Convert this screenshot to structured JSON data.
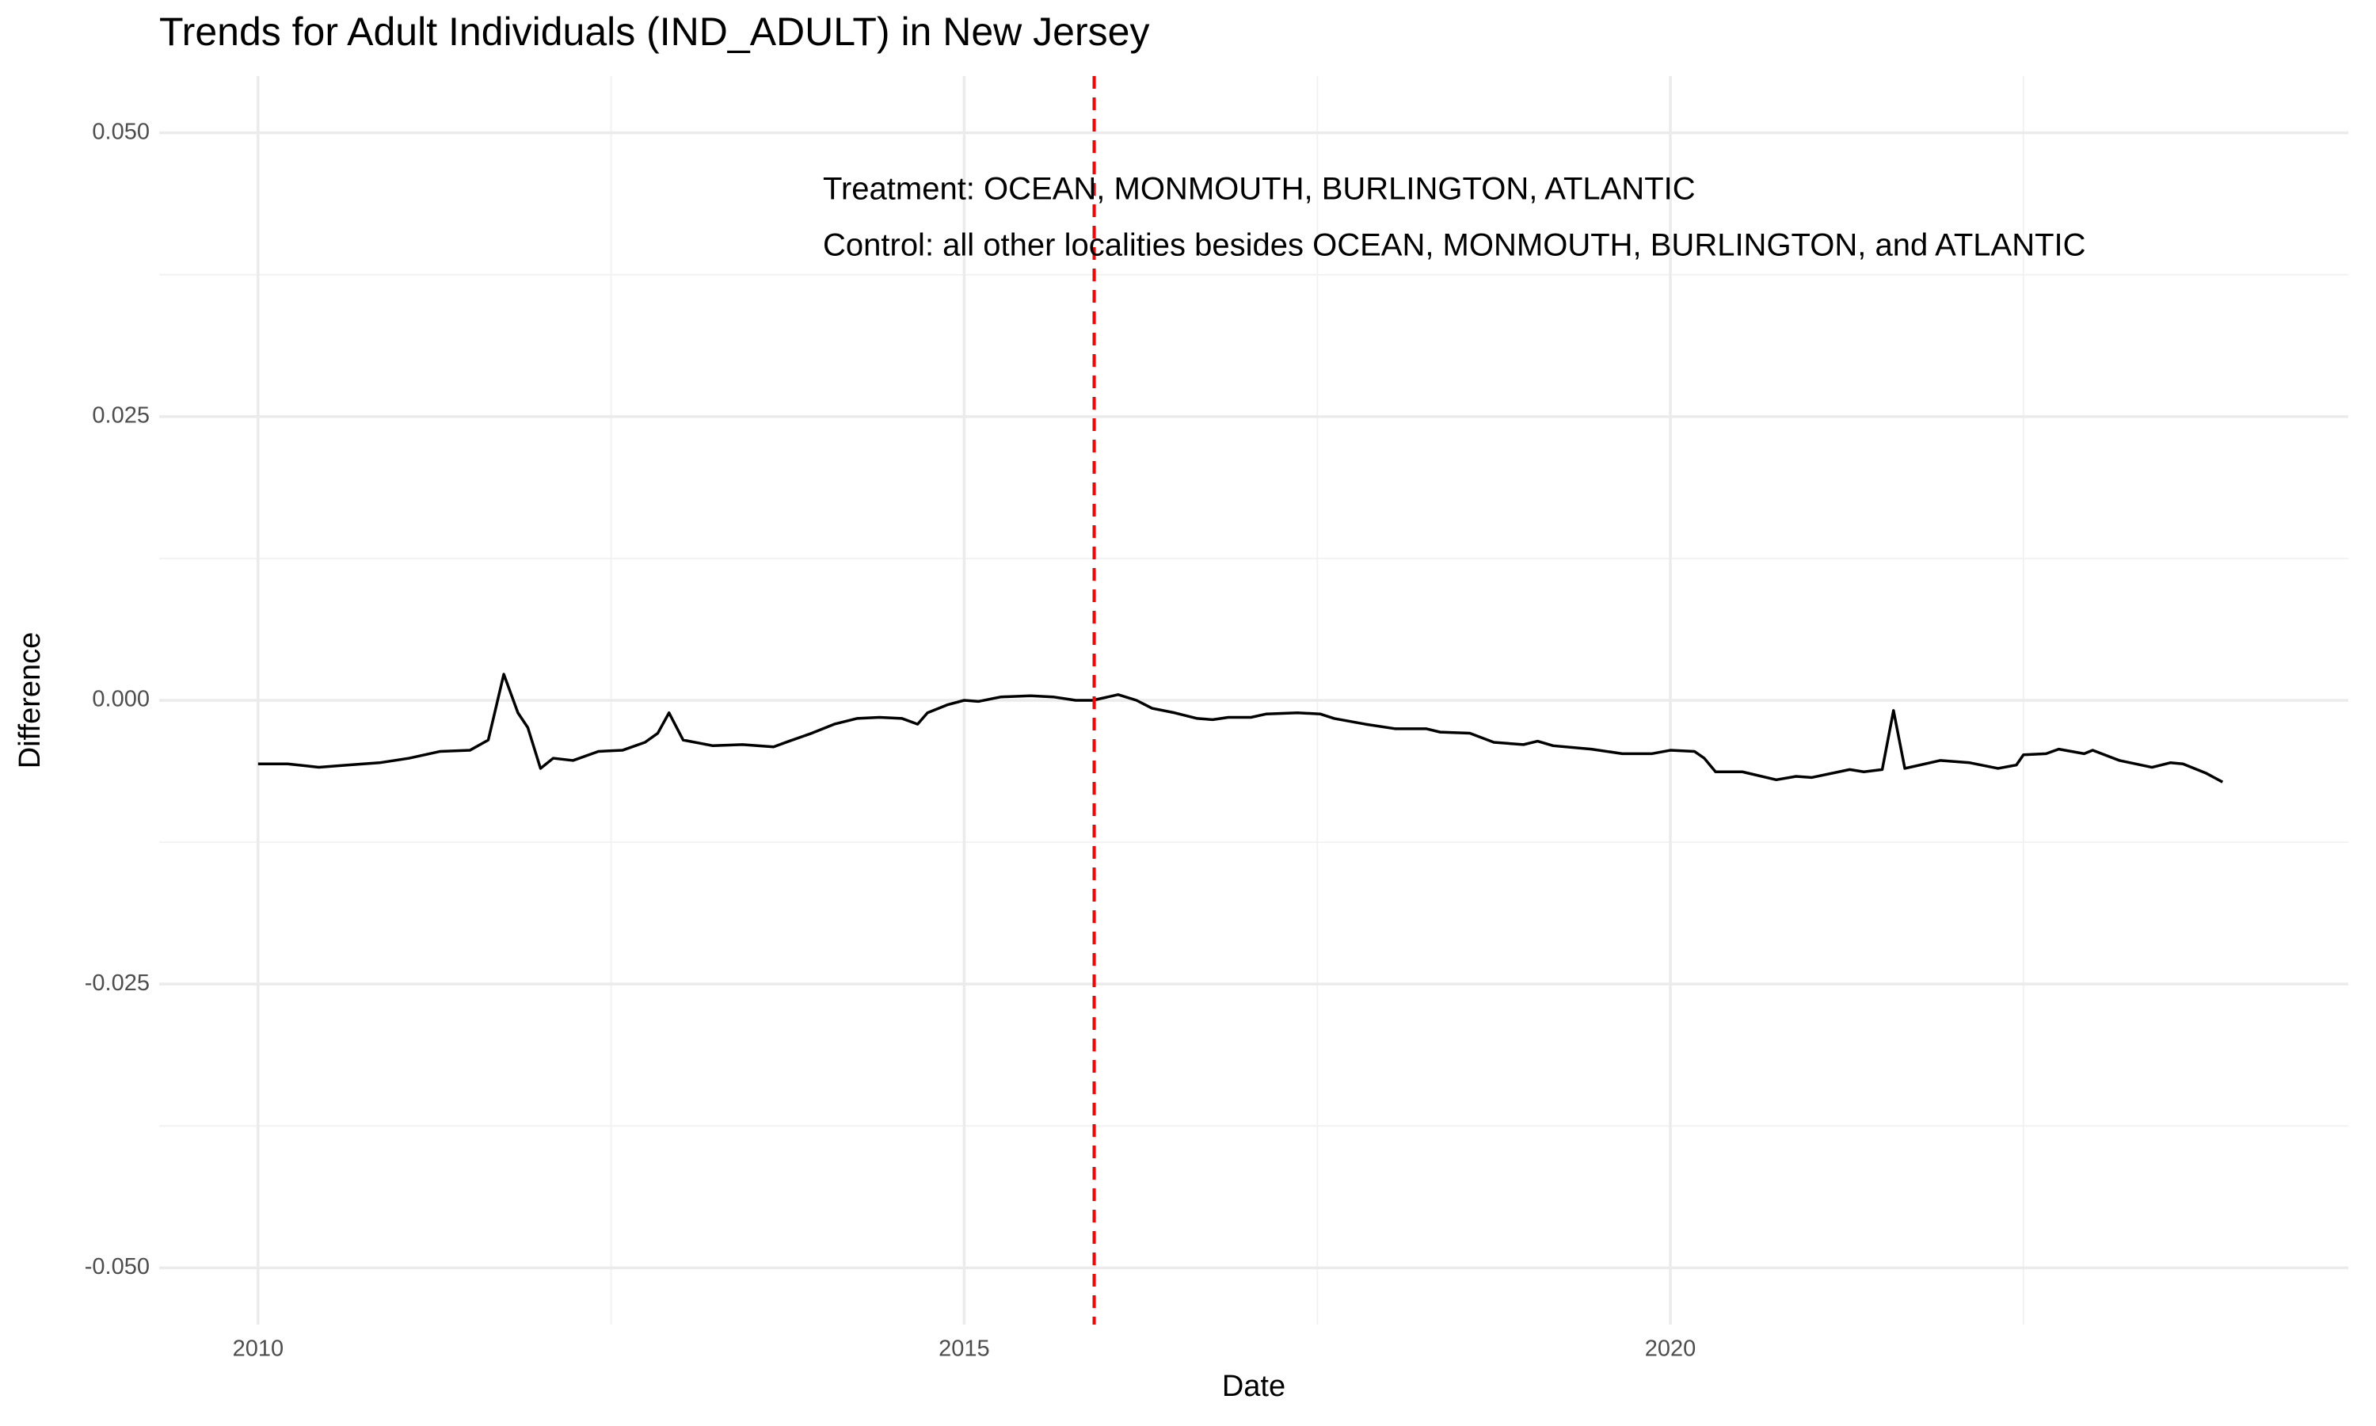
{
  "chart_data": {
    "type": "line",
    "title": "Trends for Adult Individuals (IND_ADULT) in New Jersey",
    "x_label": "Date",
    "y_label": "Difference",
    "annotations": [
      "Treatment: OCEAN, MONMOUTH, BURLINGTON, ATLANTIC",
      "Control: all other localities besides OCEAN, MONMOUTH, BURLINGTON, and ATLANTIC"
    ],
    "xlim": [
      2009.3,
      2024.8
    ],
    "ylim": [
      -0.055,
      0.055
    ],
    "xticks": [
      2010,
      2015,
      2020
    ],
    "yticks": [
      {
        "value": 0.05,
        "label": "0.050"
      },
      {
        "value": 0.025,
        "label": "0.025"
      },
      {
        "value": 0,
        "label": "0.000"
      },
      {
        "value": -0.025,
        "label": "-0.025"
      },
      {
        "value": -0.05,
        "label": "-0.050"
      }
    ],
    "minor_xticks": [
      2012.5,
      2017.5,
      2022.5
    ],
    "minor_yticks": [
      0.0375,
      0.0125,
      -0.0125,
      -0.0375
    ],
    "grid": true,
    "vline": {
      "x": 2015.92,
      "color": "#ff0000"
    },
    "series": [
      {
        "color": "#000000",
        "x": [
          2010.0,
          2010.21,
          2010.43,
          2010.64,
          2010.86,
          2011.07,
          2011.29,
          2011.5,
          2011.63,
          2011.74,
          2011.84,
          2011.91,
          2012.0,
          2012.09,
          2012.23,
          2012.41,
          2012.58,
          2012.74,
          2012.83,
          2012.91,
          2013.01,
          2013.22,
          2013.43,
          2013.65,
          2013.76,
          2013.92,
          2014.08,
          2014.24,
          2014.4,
          2014.56,
          2014.67,
          2014.74,
          2014.88,
          2015.0,
          2015.1,
          2015.26,
          2015.47,
          2015.63,
          2015.79,
          2015.91,
          2016.09,
          2016.22,
          2016.33,
          2016.49,
          2016.65,
          2016.76,
          2016.87,
          2017.03,
          2017.14,
          2017.36,
          2017.52,
          2017.62,
          2017.84,
          2018.05,
          2018.27,
          2018.37,
          2018.58,
          2018.75,
          2018.96,
          2019.06,
          2019.17,
          2019.44,
          2019.66,
          2019.87,
          2020.0,
          2020.17,
          2020.24,
          2020.32,
          2020.51,
          2020.75,
          2020.89,
          2021.0,
          2021.27,
          2021.37,
          2021.5,
          2021.58,
          2021.66,
          2021.91,
          2022.12,
          2022.32,
          2022.45,
          2022.5,
          2022.66,
          2022.75,
          2022.93,
          2022.99,
          2023.18,
          2023.41,
          2023.54,
          2023.63,
          2023.79,
          2023.91
        ],
        "values": [
          -0.0056,
          -0.0056,
          -0.0059,
          -0.0057,
          -0.0055,
          -0.0051,
          -0.0045,
          -0.0044,
          -0.0035,
          0.0023,
          -0.0011,
          -0.0024,
          -0.006,
          -0.0051,
          -0.0053,
          -0.0045,
          -0.0044,
          -0.0037,
          -0.0029,
          -0.0011,
          -0.0035,
          -0.004,
          -0.0039,
          -0.0041,
          -0.0036,
          -0.0029,
          -0.0021,
          -0.0016,
          -0.0015,
          -0.0016,
          -0.0021,
          -0.0011,
          -0.0004,
          0,
          -0.0001,
          0.0003,
          0.0004,
          0.0003,
          0,
          0,
          0.0005,
          0,
          -0.0007,
          -0.0011,
          -0.0016,
          -0.0017,
          -0.0015,
          -0.0015,
          -0.0012,
          -0.0011,
          -0.0012,
          -0.0016,
          -0.0021,
          -0.0025,
          -0.0025,
          -0.0028,
          -0.0029,
          -0.0037,
          -0.0039,
          -0.0036,
          -0.004,
          -0.0043,
          -0.0047,
          -0.0047,
          -0.0044,
          -0.0045,
          -0.0051,
          -0.0063,
          -0.0063,
          -0.007,
          -0.0067,
          -0.0068,
          -0.0061,
          -0.0063,
          -0.0061,
          -0.0009,
          -0.006,
          -0.0053,
          -0.0055,
          -0.006,
          -0.0057,
          -0.0048,
          -0.0047,
          -0.0043,
          -0.0047,
          -0.0044,
          -0.0053,
          -0.0059,
          -0.0055,
          -0.0056,
          -0.0064,
          -0.0072
        ]
      }
    ]
  }
}
